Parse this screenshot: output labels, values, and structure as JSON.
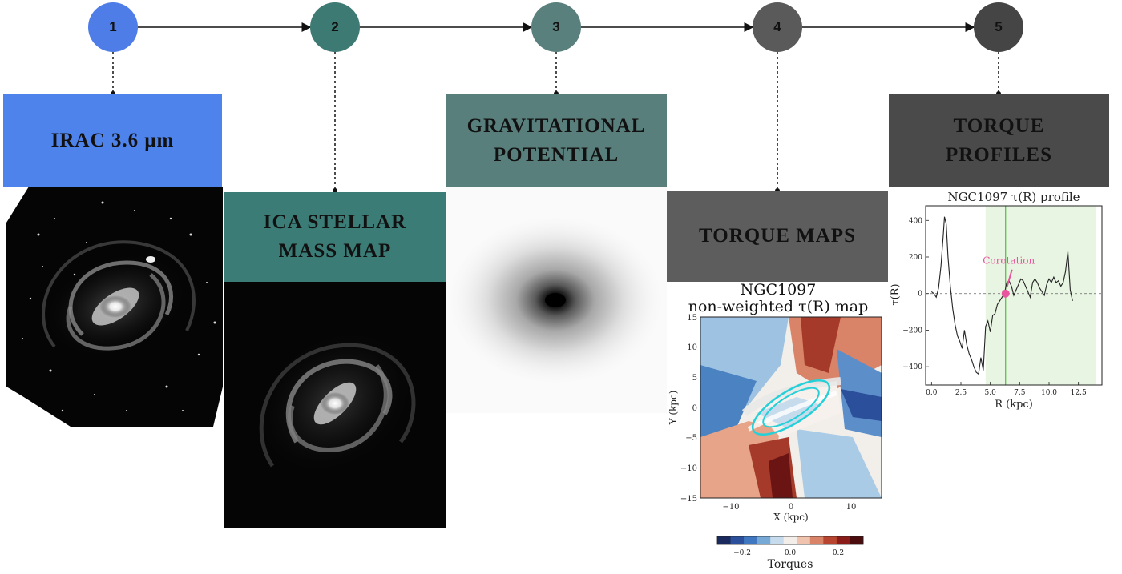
{
  "steps": [
    {
      "num": "1",
      "color": "#4f7de8",
      "label": "IRAC 3.6 μm",
      "label_bg": "#4f83ec"
    },
    {
      "num": "2",
      "color": "#3d7a73",
      "label": "ICA STELLAR\nMASS MAP",
      "label_bg": "#3b7c77"
    },
    {
      "num": "3",
      "color": "#5a807d",
      "label": "GRAVITATIONAL\nPOTENTIAL",
      "label_bg": "#597f7c"
    },
    {
      "num": "4",
      "color": "#5a5a5a",
      "label": "TORQUE MAPS",
      "label_bg": "#5d5d5d"
    },
    {
      "num": "5",
      "color": "#454545",
      "label": "TORQUE\nPROFILES",
      "label_bg": "#4a4a4a"
    }
  ],
  "torque_map": {
    "title_line1": "NGC1097",
    "title_line2": "non-weighted τ(R) map",
    "xlabel": "X (kpc)",
    "ylabel": "Y (kpc)",
    "xticks": [
      "−10",
      "0",
      "10"
    ],
    "yticks": [
      "15",
      "10",
      "5",
      "0",
      "−5",
      "−10",
      "−15"
    ],
    "colorbar_label": "Torques",
    "colorbar_ticks": [
      "−0.2",
      "0.0",
      "0.2"
    ],
    "colorbar_colors": [
      "#1b2a5e",
      "#2b4f9a",
      "#3f78c1",
      "#77a9d6",
      "#c6dcec",
      "#f3eeea",
      "#f0c3ae",
      "#d98468",
      "#b8452f",
      "#8a1d1a",
      "#4a0c0c"
    ]
  },
  "chart_data": {
    "type": "line",
    "title": "NGC1097 τ(R) profile",
    "xlabel": "R (kpc)",
    "ylabel": "τ(R)",
    "xlim": [
      -0.5,
      14.5
    ],
    "ylim": [
      -500,
      480
    ],
    "xticks": [
      0.0,
      2.5,
      5.0,
      7.5,
      10.0,
      12.5
    ],
    "xtick_labels": [
      "0.0",
      "2.5",
      "5.0",
      "7.5",
      "10.0",
      "12.5"
    ],
    "yticks": [
      400,
      200,
      0,
      -200,
      -400
    ],
    "ytick_labels": [
      "400",
      "200",
      "0",
      "−200",
      "−400"
    ],
    "annotation": "Corotation",
    "corotation_r": 6.3,
    "shaded_region": [
      4.6,
      14.0
    ],
    "series": [
      {
        "x": [
          0.0,
          0.2,
          0.4,
          0.6,
          0.8,
          1.0,
          1.1,
          1.25,
          1.4,
          1.6,
          1.8,
          2.0,
          2.2,
          2.4,
          2.6,
          2.8,
          3.0,
          3.2,
          3.4,
          3.6,
          3.8,
          4.0,
          4.2,
          4.4,
          4.6,
          4.8,
          5.0,
          5.2,
          5.4,
          5.6,
          5.8,
          6.0,
          6.2,
          6.4,
          6.6,
          6.8,
          7.0,
          7.2,
          7.4,
          7.6,
          7.8,
          8.0,
          8.2,
          8.4,
          8.6,
          8.8,
          9.0,
          9.2,
          9.4,
          9.6,
          9.8,
          10.0,
          10.2,
          10.4,
          10.6,
          10.8,
          11.0,
          11.2,
          11.4,
          11.6,
          11.8,
          12.0
        ],
        "y": [
          10,
          0,
          -20,
          30,
          150,
          320,
          420,
          380,
          200,
          40,
          -80,
          -170,
          -230,
          -260,
          -300,
          -200,
          -280,
          -330,
          -360,
          -400,
          -430,
          -440,
          -350,
          -420,
          -180,
          -150,
          -210,
          -120,
          -110,
          -60,
          -40,
          -20,
          0,
          60,
          70,
          40,
          -10,
          20,
          50,
          80,
          70,
          40,
          10,
          -20,
          60,
          80,
          60,
          30,
          10,
          -10,
          50,
          80,
          60,
          90,
          60,
          70,
          40,
          60,
          120,
          230,
          20,
          -40
        ]
      }
    ]
  }
}
